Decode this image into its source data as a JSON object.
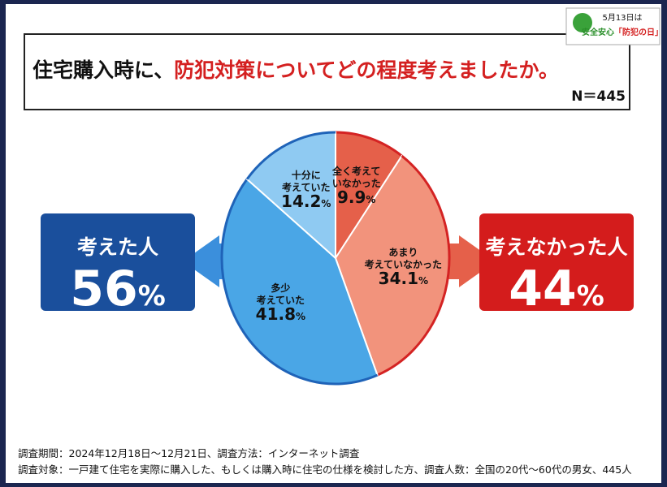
{
  "chart_data": {
    "type": "pie",
    "title": [
      "住宅購入時に、",
      "防犯対策についてどの程度考えましたか。"
    ],
    "subtitle": "N＝445",
    "categories": [
      "全く考えて\nいなかった",
      "あまり\n考えていなかった",
      "多少\n考えていた",
      "十分に\n考えていた"
    ],
    "values": [
      9.9,
      34.1,
      41.8,
      14.2
    ],
    "value_labels": [
      "9.9%",
      "34.1%",
      "41.8%",
      "14.2%"
    ],
    "colors": [
      "#e5604a",
      "#f2937c",
      "#4aa6e6",
      "#8fcaf2"
    ],
    "edge_colors": [
      "#d42323",
      "#d42323",
      "#1f63b8",
      "#1f63b8"
    ],
    "summary": [
      {
        "label": "考えた人",
        "value": 56,
        "value_label": "56%",
        "color": "#1a4f9c"
      },
      {
        "label": "考えなかった人",
        "value": 44,
        "value_label": "44%",
        "color": "#d41c1c"
      }
    ],
    "notes": [
      "調査期間：2024年12月18日～12月21日、調査方法：インターネット調査",
      "調査対象：一戸建て住宅を実際に購入した、もしくは購入時に住宅の仕様を検討した方、調査人数：全国の20代～60代の男女、445人"
    ],
    "badge": {
      "line1": "5月13日は",
      "line2a": "安全安心",
      "line2b": "「防犯の日」"
    }
  }
}
